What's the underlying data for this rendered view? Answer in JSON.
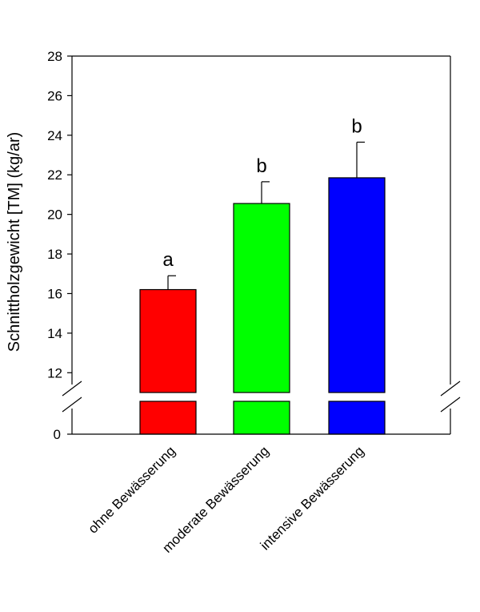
{
  "chart_data": {
    "type": "bar",
    "title": "",
    "ylabel": "Schnittholzgewicht [TM] (kg/ar)",
    "xlabel": "",
    "ylim": [
      11,
      28
    ],
    "broken_axis": true,
    "lower_segment_tick": "0",
    "yticks": [
      "12",
      "14",
      "16",
      "18",
      "20",
      "22",
      "24",
      "26",
      "28"
    ],
    "grid": false,
    "categories": [
      "ohne Bewässerung",
      "moderate Bewässerung",
      "intensive Bewässerung"
    ],
    "values": [
      16.2,
      20.55,
      21.85
    ],
    "errors": [
      0.7,
      1.1,
      1.8
    ],
    "significance": [
      "a",
      "b",
      "b"
    ],
    "colors": [
      "#ff0000",
      "#00ff00",
      "#0000ff"
    ]
  }
}
